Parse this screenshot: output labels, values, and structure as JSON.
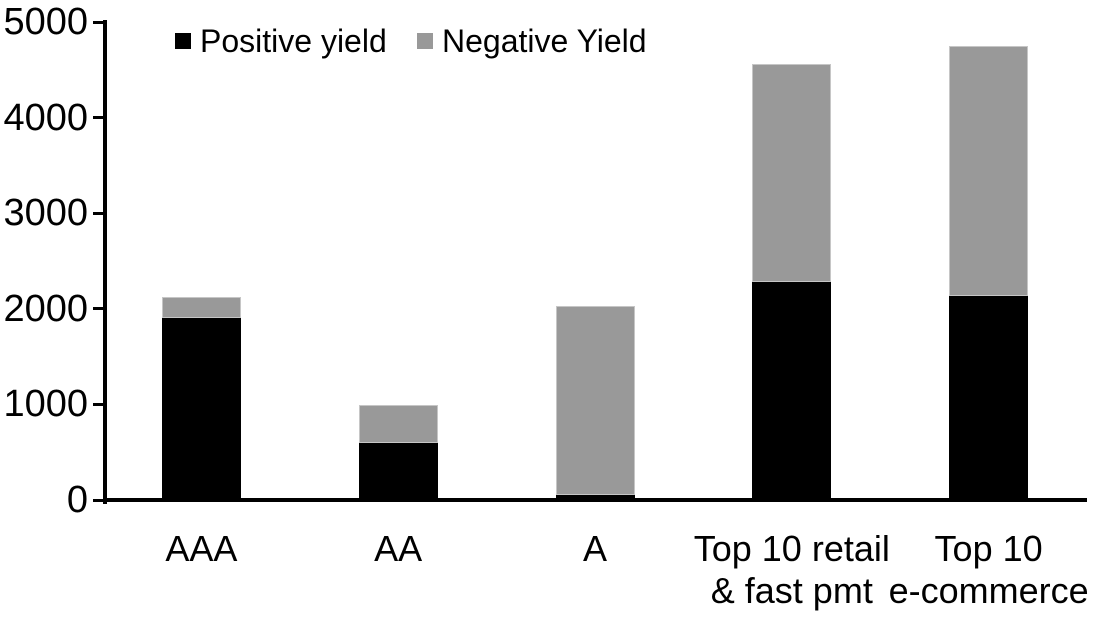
{
  "chart_data": {
    "type": "bar",
    "stacked": true,
    "title": "",
    "xlabel": "",
    "ylabel": "",
    "categories": [
      "AAA",
      "AA",
      "A",
      "Top 10 retail\n& fast pmt",
      "Top 10\ne-commerce"
    ],
    "series": [
      {
        "name": "Positive yield",
        "color": "#000000",
        "values": [
          1900,
          600,
          50,
          2280,
          2130
        ]
      },
      {
        "name": "Negative Yield",
        "color": "#999999",
        "values": [
          220,
          390,
          1980,
          2280,
          2620
        ]
      }
    ],
    "totals": [
      2120,
      990,
      2030,
      4560,
      4750
    ],
    "ylim": [
      0,
      5000
    ],
    "yticks": [
      0,
      1000,
      2000,
      3000,
      4000,
      5000
    ],
    "grid": false,
    "legend_position": "top-left"
  },
  "colors": {
    "background": "#ffffff",
    "axis": "#000000",
    "positive_series": "#000000",
    "negative_series": "#999999",
    "text": "#000000"
  }
}
